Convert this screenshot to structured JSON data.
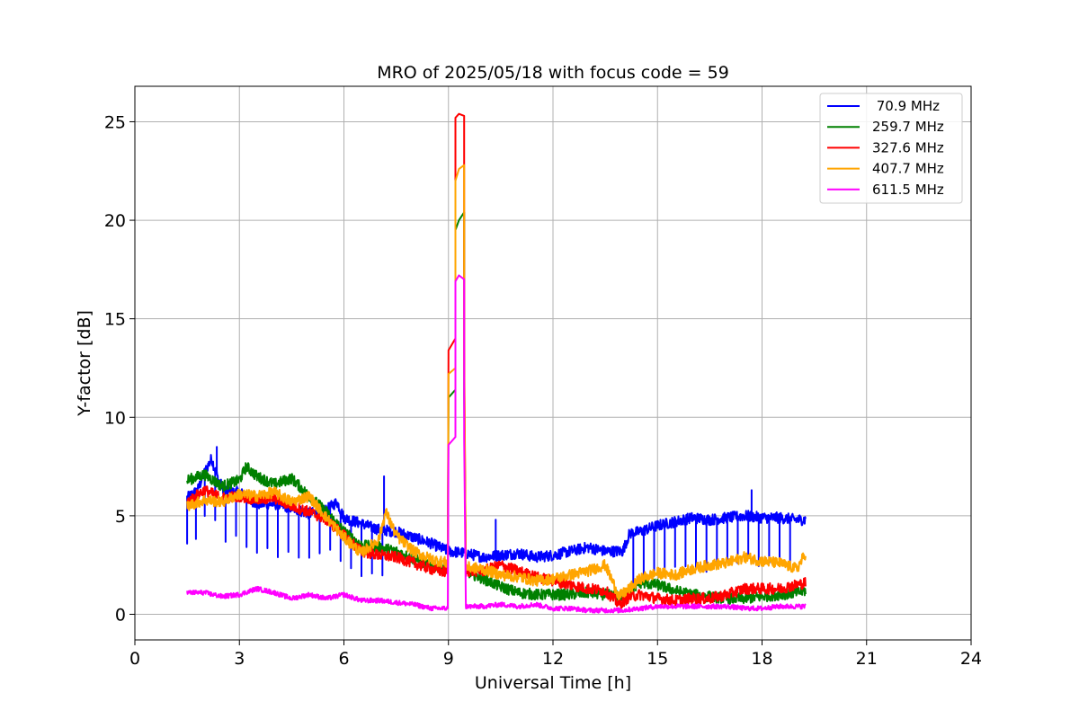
{
  "chart_data": {
    "type": "line",
    "title": "MRO of 2025/05/18 with focus code = 59",
    "xlabel": "Universal Time [h]",
    "ylabel": "Y-factor [dB]",
    "xlim": [
      0,
      24
    ],
    "ylim": [
      -1.3,
      26.8
    ],
    "xticks": [
      0,
      3,
      6,
      9,
      12,
      15,
      18,
      21,
      24
    ],
    "yticks": [
      0,
      5,
      10,
      15,
      20,
      25
    ],
    "grid": true,
    "legend_position": "top-right",
    "series": [
      {
        "name": " 70.9 MHz",
        "color": "#0000ff",
        "points": [
          [
            1.5,
            5.9
          ],
          [
            1.8,
            6.3
          ],
          [
            2.0,
            7.2
          ],
          [
            2.2,
            7.9
          ],
          [
            2.4,
            6.8
          ],
          [
            2.6,
            6.2
          ],
          [
            3.0,
            6.2
          ],
          [
            3.5,
            5.6
          ],
          [
            4.0,
            5.6
          ],
          [
            4.5,
            5.4
          ],
          [
            5.0,
            5.1
          ],
          [
            5.5,
            5.3
          ],
          [
            5.8,
            5.7
          ],
          [
            6.0,
            4.9
          ],
          [
            6.5,
            4.6
          ],
          [
            7.0,
            4.3
          ],
          [
            7.5,
            4.2
          ],
          [
            8.0,
            3.9
          ],
          [
            8.5,
            3.6
          ],
          [
            9.0,
            3.2
          ],
          [
            9.5,
            3.1
          ],
          [
            10.0,
            2.9
          ],
          [
            10.5,
            3.0
          ],
          [
            11.0,
            3.1
          ],
          [
            11.5,
            2.9
          ],
          [
            12.0,
            3.0
          ],
          [
            12.5,
            3.2
          ],
          [
            13.0,
            3.4
          ],
          [
            13.5,
            3.2
          ],
          [
            14.0,
            3.2
          ],
          [
            14.2,
            4.1
          ],
          [
            14.5,
            4.2
          ],
          [
            15.0,
            4.5
          ],
          [
            15.5,
            4.7
          ],
          [
            16.0,
            4.9
          ],
          [
            16.5,
            4.8
          ],
          [
            17.0,
            4.9
          ],
          [
            17.5,
            5.0
          ],
          [
            18.0,
            4.9
          ],
          [
            18.5,
            4.9
          ],
          [
            19.0,
            4.8
          ],
          [
            19.25,
            4.8
          ]
        ],
        "dips": [
          1.5,
          1.75,
          2.0,
          2.3,
          2.6,
          2.9,
          3.2,
          3.5,
          3.8,
          4.1,
          4.4,
          4.7,
          5.0,
          5.3,
          5.6,
          5.9,
          6.2,
          6.5,
          6.8,
          7.1,
          14.3,
          14.6,
          14.9,
          15.2,
          15.5,
          15.8,
          16.1,
          16.4,
          16.7,
          17.0,
          17.3,
          17.6,
          17.9,
          18.2,
          18.5,
          18.8
        ],
        "spikes": [
          [
            2.35,
            8.5
          ],
          [
            7.15,
            7.0
          ],
          [
            10.35,
            4.8
          ],
          [
            17.7,
            6.3
          ]
        ]
      },
      {
        "name": "259.7 MHz",
        "color": "#008000",
        "points": [
          [
            1.5,
            6.8
          ],
          [
            2.0,
            7.1
          ],
          [
            2.5,
            6.5
          ],
          [
            3.0,
            6.8
          ],
          [
            3.2,
            7.5
          ],
          [
            3.5,
            7.0
          ],
          [
            4.0,
            6.6
          ],
          [
            4.5,
            6.9
          ],
          [
            5.0,
            6.0
          ],
          [
            5.5,
            5.2
          ],
          [
            6.0,
            4.2
          ],
          [
            6.5,
            3.5
          ],
          [
            7.0,
            3.4
          ],
          [
            7.5,
            3.2
          ],
          [
            8.0,
            2.8
          ],
          [
            8.5,
            2.5
          ],
          [
            9.0,
            2.3
          ],
          [
            9.5,
            2.2
          ],
          [
            10.0,
            1.8
          ],
          [
            10.5,
            1.4
          ],
          [
            11.0,
            1.1
          ],
          [
            11.5,
            1.0
          ],
          [
            12.0,
            1.0
          ],
          [
            12.5,
            1.0
          ],
          [
            13.0,
            1.1
          ],
          [
            13.5,
            1.0
          ],
          [
            14.0,
            0.9
          ],
          [
            14.5,
            1.6
          ],
          [
            15.0,
            1.5
          ],
          [
            15.5,
            1.2
          ],
          [
            16.0,
            1.0
          ],
          [
            16.5,
            0.9
          ],
          [
            17.0,
            0.8
          ],
          [
            17.5,
            0.8
          ],
          [
            18.0,
            0.9
          ],
          [
            18.5,
            1.0
          ],
          [
            19.0,
            1.1
          ],
          [
            19.25,
            1.2
          ]
        ],
        "pulse": [
          [
            8.98,
            2.3
          ],
          [
            9.0,
            11.0
          ],
          [
            9.2,
            11.4
          ],
          [
            9.2,
            19.5
          ],
          [
            9.3,
            20.0
          ],
          [
            9.45,
            20.4
          ],
          [
            9.45,
            11.1
          ],
          [
            9.5,
            2.4
          ]
        ]
      },
      {
        "name": "327.6 MHz",
        "color": "#ff0000",
        "points": [
          [
            1.5,
            5.7
          ],
          [
            2.0,
            6.3
          ],
          [
            2.5,
            5.9
          ],
          [
            3.0,
            6.0
          ],
          [
            3.5,
            5.8
          ],
          [
            4.0,
            5.9
          ],
          [
            4.5,
            5.5
          ],
          [
            5.0,
            5.2
          ],
          [
            5.5,
            4.8
          ],
          [
            6.0,
            4.0
          ],
          [
            6.5,
            3.2
          ],
          [
            7.0,
            3.0
          ],
          [
            7.5,
            2.9
          ],
          [
            8.0,
            2.6
          ],
          [
            8.5,
            2.3
          ],
          [
            9.0,
            2.1
          ],
          [
            9.5,
            2.2
          ],
          [
            10.0,
            2.2
          ],
          [
            10.5,
            2.5
          ],
          [
            11.0,
            2.2
          ],
          [
            11.5,
            1.9
          ],
          [
            12.0,
            1.7
          ],
          [
            12.5,
            1.5
          ],
          [
            13.0,
            1.3
          ],
          [
            13.5,
            1.2
          ],
          [
            13.9,
            0.5
          ],
          [
            14.2,
            0.9
          ],
          [
            14.5,
            1.0
          ],
          [
            15.0,
            0.8
          ],
          [
            15.5,
            0.7
          ],
          [
            16.0,
            0.8
          ],
          [
            16.5,
            0.8
          ],
          [
            17.0,
            1.0
          ],
          [
            17.5,
            1.3
          ],
          [
            18.0,
            1.3
          ],
          [
            18.5,
            1.3
          ],
          [
            19.0,
            1.5
          ],
          [
            19.25,
            1.6
          ]
        ],
        "pulse": [
          [
            8.98,
            2.1
          ],
          [
            9.0,
            13.4
          ],
          [
            9.2,
            14.0
          ],
          [
            9.2,
            25.2
          ],
          [
            9.3,
            25.4
          ],
          [
            9.45,
            25.3
          ],
          [
            9.45,
            13.8
          ],
          [
            9.5,
            2.2
          ]
        ]
      },
      {
        "name": "407.7 MHz",
        "color": "#ffa500",
        "points": [
          [
            1.5,
            5.5
          ],
          [
            2.0,
            5.8
          ],
          [
            2.5,
            5.7
          ],
          [
            3.0,
            6.1
          ],
          [
            3.5,
            6.0
          ],
          [
            4.0,
            6.2
          ],
          [
            4.5,
            5.7
          ],
          [
            5.0,
            6.0
          ],
          [
            5.5,
            4.9
          ],
          [
            6.0,
            3.9
          ],
          [
            6.5,
            3.1
          ],
          [
            7.0,
            3.8
          ],
          [
            7.2,
            5.2
          ],
          [
            7.5,
            4.0
          ],
          [
            8.0,
            3.2
          ],
          [
            8.5,
            2.8
          ],
          [
            9.0,
            2.6
          ],
          [
            9.5,
            2.4
          ],
          [
            10.0,
            2.3
          ],
          [
            10.5,
            2.0
          ],
          [
            11.0,
            1.9
          ],
          [
            11.5,
            1.7
          ],
          [
            12.0,
            1.8
          ],
          [
            12.5,
            2.0
          ],
          [
            13.0,
            2.2
          ],
          [
            13.5,
            2.5
          ],
          [
            13.9,
            0.9
          ],
          [
            14.2,
            1.3
          ],
          [
            14.5,
            1.8
          ],
          [
            15.0,
            2.1
          ],
          [
            15.5,
            2.0
          ],
          [
            16.0,
            2.3
          ],
          [
            16.5,
            2.5
          ],
          [
            17.0,
            2.6
          ],
          [
            17.5,
            2.9
          ],
          [
            18.0,
            2.7
          ],
          [
            18.5,
            2.6
          ],
          [
            19.0,
            2.3
          ],
          [
            19.25,
            3.1
          ]
        ],
        "pulse": [
          [
            8.98,
            2.6
          ],
          [
            9.0,
            12.2
          ],
          [
            9.2,
            12.5
          ],
          [
            9.2,
            22.0
          ],
          [
            9.3,
            22.6
          ],
          [
            9.45,
            22.8
          ],
          [
            9.45,
            12.8
          ],
          [
            9.5,
            2.4
          ]
        ]
      },
      {
        "name": "611.5 MHz",
        "color": "#ff00ff",
        "points": [
          [
            1.5,
            1.1
          ],
          [
            2.0,
            1.1
          ],
          [
            2.5,
            0.9
          ],
          [
            3.0,
            1.0
          ],
          [
            3.5,
            1.3
          ],
          [
            4.0,
            1.1
          ],
          [
            4.5,
            0.8
          ],
          [
            5.0,
            1.0
          ],
          [
            5.5,
            0.8
          ],
          [
            6.0,
            1.0
          ],
          [
            6.5,
            0.7
          ],
          [
            7.0,
            0.7
          ],
          [
            7.5,
            0.6
          ],
          [
            8.0,
            0.5
          ],
          [
            8.5,
            0.3
          ],
          [
            9.0,
            0.3
          ],
          [
            9.5,
            0.4
          ],
          [
            10.0,
            0.4
          ],
          [
            10.5,
            0.5
          ],
          [
            11.0,
            0.4
          ],
          [
            11.5,
            0.5
          ],
          [
            12.0,
            0.3
          ],
          [
            12.5,
            0.3
          ],
          [
            13.0,
            0.2
          ],
          [
            13.5,
            0.2
          ],
          [
            14.0,
            0.2
          ],
          [
            14.5,
            0.3
          ],
          [
            15.0,
            0.4
          ],
          [
            15.5,
            0.4
          ],
          [
            16.0,
            0.4
          ],
          [
            16.5,
            0.4
          ],
          [
            17.0,
            0.4
          ],
          [
            17.5,
            0.3
          ],
          [
            18.0,
            0.3
          ],
          [
            18.5,
            0.4
          ],
          [
            19.0,
            0.4
          ],
          [
            19.25,
            0.4
          ]
        ],
        "pulse": [
          [
            8.98,
            0.3
          ],
          [
            9.0,
            8.6
          ],
          [
            9.2,
            9.0
          ],
          [
            9.2,
            16.9
          ],
          [
            9.3,
            17.2
          ],
          [
            9.45,
            17.0
          ],
          [
            9.45,
            8.9
          ],
          [
            9.5,
            0.4
          ]
        ]
      }
    ]
  }
}
